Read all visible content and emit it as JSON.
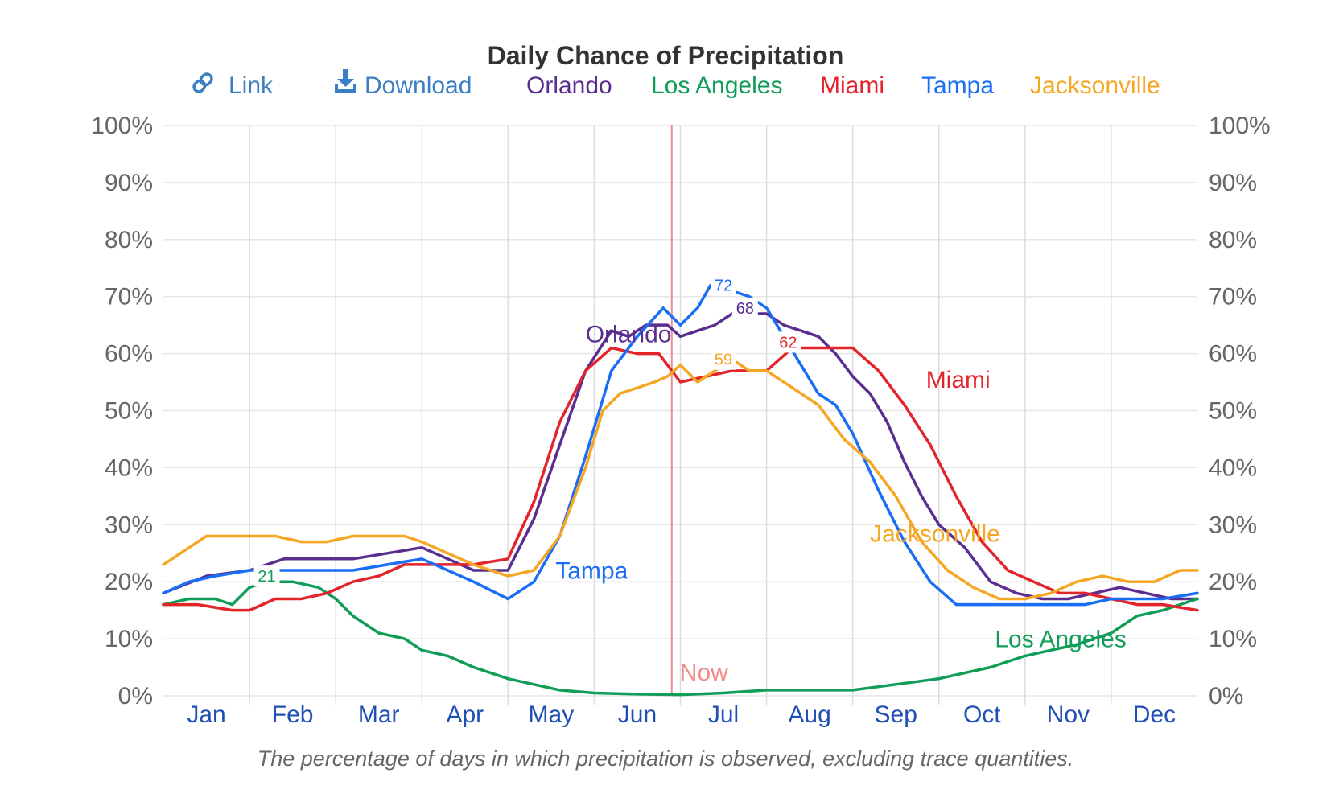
{
  "title": "Daily Chance of Precipitation",
  "caption": "The percentage of days in which precipitation is observed, excluding trace quantities.",
  "toolbar": {
    "link_label": "Link",
    "download_label": "Download"
  },
  "now_label": "Now",
  "colors": {
    "orlando": "#5a2d91",
    "los_angeles": "#0f9d58",
    "miami": "#e3242b",
    "tampa": "#1a6ef5",
    "jacksonville": "#f5a623",
    "now_line": "#f28b8b",
    "link": "#3b7fc4"
  },
  "icons": {
    "link": "link-icon",
    "download": "download-icon"
  },
  "chart_data": {
    "type": "line",
    "title": "Daily Chance of Precipitation",
    "x_unit": "month",
    "categories": [
      "Jan",
      "Feb",
      "Mar",
      "Apr",
      "May",
      "Jun",
      "Jul",
      "Aug",
      "Sep",
      "Oct",
      "Nov",
      "Dec"
    ],
    "y_ticks": [
      "0%",
      "10%",
      "20%",
      "30%",
      "40%",
      "50%",
      "60%",
      "70%",
      "80%",
      "90%",
      "100%"
    ],
    "ylim": [
      0,
      100
    ],
    "xlim": [
      1,
      13
    ],
    "grid": true,
    "legend_position": "top",
    "now_x": 6.9,
    "series": [
      {
        "name": "Orlando",
        "color": "#5a2d91",
        "label_x": 5.9,
        "label_y": 62,
        "peak_label": {
          "text": "68",
          "x": 7.75,
          "y": 68
        },
        "x": [
          1.0,
          1.5,
          2.0,
          2.4,
          2.8,
          3.2,
          3.6,
          4.0,
          4.3,
          4.6,
          5.0,
          5.3,
          5.6,
          5.9,
          6.2,
          6.4,
          6.6,
          6.85,
          7.0,
          7.2,
          7.4,
          7.6,
          7.8,
          8.0,
          8.2,
          8.4,
          8.6,
          8.8,
          9.0,
          9.2,
          9.4,
          9.6,
          9.8,
          10.0,
          10.3,
          10.6,
          10.9,
          11.2,
          11.5,
          11.8,
          12.1,
          12.4,
          12.7,
          13.0
        ],
        "y": [
          18,
          21,
          22,
          24,
          24,
          24,
          25,
          26,
          24,
          22,
          22,
          31,
          44,
          57,
          64,
          63,
          65,
          65,
          63,
          64,
          65,
          67,
          67,
          67,
          65,
          64,
          63,
          60,
          56,
          53,
          48,
          41,
          35,
          30,
          26,
          20,
          18,
          17,
          17,
          18,
          19,
          18,
          17,
          17
        ]
      },
      {
        "name": "Los Angeles",
        "color": "#0f9d58",
        "label_x": 10.65,
        "label_y": 8.5,
        "peak_label": {
          "text": "21",
          "x": 2.2,
          "y": 21
        },
        "x": [
          1.0,
          1.3,
          1.6,
          1.8,
          2.0,
          2.2,
          2.5,
          2.8,
          3.0,
          3.2,
          3.5,
          3.8,
          4.0,
          4.3,
          4.6,
          5.0,
          5.3,
          5.6,
          6.0,
          6.5,
          7.0,
          7.5,
          8.0,
          8.5,
          9.0,
          9.5,
          10.0,
          10.3,
          10.6,
          11.0,
          11.3,
          11.6,
          12.0,
          12.3,
          12.6,
          13.0
        ],
        "y": [
          16,
          17,
          17,
          16,
          19,
          20,
          20,
          19,
          17,
          14,
          11,
          10,
          8,
          7,
          5,
          3,
          2,
          1,
          0.5,
          0.3,
          0.2,
          0.5,
          1,
          1,
          1,
          2,
          3,
          4,
          5,
          7,
          8,
          9,
          11,
          14,
          15,
          17
        ]
      },
      {
        "name": "Miami",
        "color": "#e3242b",
        "label_x": 9.85,
        "label_y": 54,
        "peak_label": {
          "text": "62",
          "x": 8.25,
          "y": 62
        },
        "x": [
          1.0,
          1.4,
          1.8,
          2.0,
          2.3,
          2.6,
          2.9,
          3.2,
          3.5,
          3.8,
          4.0,
          4.3,
          4.6,
          5.0,
          5.3,
          5.6,
          5.9,
          6.2,
          6.5,
          6.75,
          7.0,
          7.3,
          7.6,
          8.0,
          8.3,
          8.6,
          9.0,
          9.3,
          9.6,
          9.9,
          10.2,
          10.5,
          10.8,
          11.1,
          11.4,
          11.7,
          12.0,
          12.3,
          12.6,
          13.0
        ],
        "y": [
          16,
          16,
          15,
          15,
          17,
          17,
          18,
          20,
          21,
          23,
          23,
          23,
          23,
          24,
          34,
          48,
          57,
          61,
          60,
          60,
          55,
          56,
          57,
          57,
          61,
          61,
          61,
          57,
          51,
          44,
          35,
          27,
          22,
          20,
          18,
          18,
          17,
          16,
          16,
          15
        ]
      },
      {
        "name": "Tampa",
        "color": "#1a6ef5",
        "label_x": 5.55,
        "label_y": 20.5,
        "peak_label": {
          "text": "72",
          "x": 7.5,
          "y": 72
        },
        "x": [
          1.0,
          1.3,
          1.6,
          2.0,
          2.4,
          2.8,
          3.2,
          3.6,
          4.0,
          4.3,
          4.6,
          5.0,
          5.3,
          5.6,
          5.9,
          6.2,
          6.5,
          6.8,
          7.0,
          7.2,
          7.35,
          7.6,
          7.8,
          8.0,
          8.2,
          8.4,
          8.6,
          8.8,
          9.0,
          9.3,
          9.6,
          9.9,
          10.2,
          10.5,
          10.8,
          11.1,
          11.4,
          11.7,
          12.0,
          12.3,
          12.6,
          13.0
        ],
        "y": [
          18,
          20,
          21,
          22,
          22,
          22,
          22,
          23,
          24,
          22,
          20,
          17,
          20,
          28,
          42,
          57,
          63,
          68,
          65,
          68,
          72,
          71,
          70,
          68,
          63,
          58,
          53,
          51,
          46,
          36,
          27,
          20,
          16,
          16,
          16,
          16,
          16,
          16,
          17,
          17,
          17,
          18
        ]
      },
      {
        "name": "Jacksonville",
        "color": "#f5a623",
        "label_x": 9.2,
        "label_y": 27,
        "peak_label": {
          "text": "59",
          "x": 7.5,
          "y": 59
        },
        "x": [
          1.0,
          1.3,
          1.5,
          1.8,
          2.0,
          2.3,
          2.6,
          2.9,
          3.2,
          3.5,
          3.8,
          4.0,
          4.3,
          4.6,
          5.0,
          5.3,
          5.6,
          5.9,
          6.1,
          6.3,
          6.5,
          6.7,
          6.85,
          7.0,
          7.2,
          7.4,
          7.6,
          7.8,
          8.0,
          8.3,
          8.6,
          8.9,
          9.2,
          9.5,
          9.8,
          10.1,
          10.4,
          10.7,
          11.0,
          11.3,
          11.6,
          11.9,
          12.2,
          12.5,
          12.8,
          13.0
        ],
        "y": [
          23,
          26,
          28,
          28,
          28,
          28,
          27,
          27,
          28,
          28,
          28,
          27,
          25,
          23,
          21,
          22,
          28,
          40,
          50,
          53,
          54,
          55,
          56,
          58,
          55,
          57,
          59,
          57,
          57,
          54,
          51,
          45,
          41,
          35,
          27,
          22,
          19,
          17,
          17,
          18,
          20,
          21,
          20,
          20,
          22,
          22
        ]
      }
    ]
  }
}
